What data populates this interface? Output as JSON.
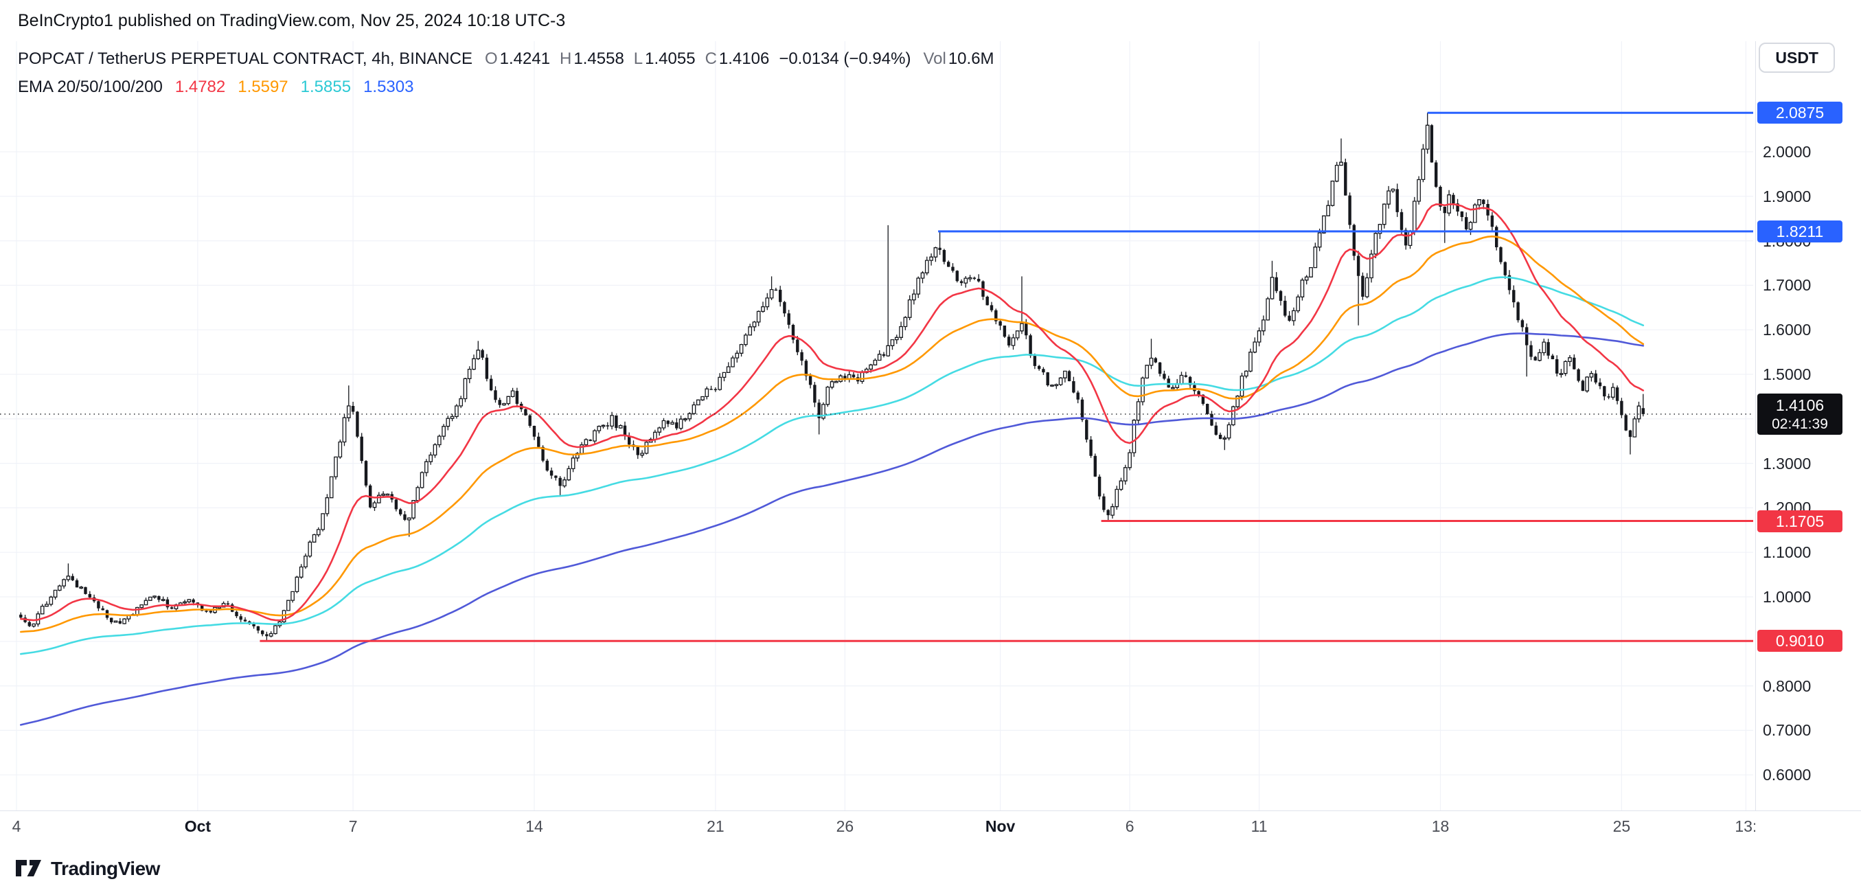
{
  "attribution": "BeInCrypto1 published on TradingView.com, Nov 25, 2024 10:18 UTC-3",
  "header": {
    "symbol_title": "POPCAT / TetherUS PERPETUAL CONTRACT, 4h, BINANCE",
    "ohlc": {
      "o_label": "O",
      "o": "1.4241",
      "h_label": "H",
      "h": "1.4558",
      "l_label": "L",
      "l": "1.4055",
      "c_label": "C",
      "c": "1.4106",
      "change": "−0.0134 (−0.94%)",
      "vol_label": "Vol",
      "vol": "10.6M"
    },
    "ema": {
      "label": "EMA 20/50/100/200",
      "values": [
        {
          "text": "1.4782",
          "color": "#f23645"
        },
        {
          "text": "1.5597",
          "color": "#ff9800"
        },
        {
          "text": "1.5855",
          "color": "#2bc9d4"
        },
        {
          "text": "1.5303",
          "color": "#2962ff"
        }
      ]
    }
  },
  "axis_button": "USDT",
  "footer_brand": "TradingView",
  "chart_data": {
    "type": "candlestick",
    "symbol": "POPCAT / TetherUS PERPETUAL CONTRACT",
    "interval": "4h",
    "exchange": "BINANCE",
    "x_unit": "days, d=0 at first visible candle (late Sep); Oct 1 = d7, Nov 25 = d62",
    "candles_per_day": 6,
    "ylim": [
      0.52,
      2.19
    ],
    "grid": true,
    "price_path": [
      [
        0,
        0.96
      ],
      [
        0.5,
        0.93
      ],
      [
        1.2,
        0.99
      ],
      [
        2,
        1.045
      ],
      [
        2.6,
        1.01
      ],
      [
        3.4,
        0.96
      ],
      [
        4,
        0.935
      ],
      [
        4.7,
        0.975
      ],
      [
        5.4,
        1.005
      ],
      [
        6,
        0.97
      ],
      [
        6.7,
        0.995
      ],
      [
        7.4,
        0.965
      ],
      [
        8,
        0.985
      ],
      [
        8.7,
        0.95
      ],
      [
        9.3,
        0.925
      ],
      [
        9.7,
        0.907
      ],
      [
        10.2,
        0.945
      ],
      [
        10.7,
        1.02
      ],
      [
        11.2,
        1.1
      ],
      [
        11.7,
        1.16
      ],
      [
        12.2,
        1.27
      ],
      [
        12.6,
        1.38
      ],
      [
        12.9,
        1.45
      ],
      [
        13.3,
        1.32
      ],
      [
        13.7,
        1.19
      ],
      [
        14.1,
        1.24
      ],
      [
        14.6,
        1.21
      ],
      [
        15.1,
        1.16
      ],
      [
        15.6,
        1.27
      ],
      [
        16.1,
        1.34
      ],
      [
        16.6,
        1.385
      ],
      [
        17.1,
        1.44
      ],
      [
        17.5,
        1.51
      ],
      [
        17.9,
        1.555
      ],
      [
        18.3,
        1.47
      ],
      [
        18.7,
        1.43
      ],
      [
        19.1,
        1.465
      ],
      [
        19.5,
        1.42
      ],
      [
        20,
        1.36
      ],
      [
        20.5,
        1.29
      ],
      [
        21,
        1.245
      ],
      [
        21.5,
        1.31
      ],
      [
        22,
        1.345
      ],
      [
        22.5,
        1.375
      ],
      [
        23,
        1.4
      ],
      [
        23.5,
        1.365
      ],
      [
        24,
        1.315
      ],
      [
        24.5,
        1.36
      ],
      [
        25,
        1.4
      ],
      [
        25.5,
        1.385
      ],
      [
        26,
        1.42
      ],
      [
        26.5,
        1.45
      ],
      [
        27,
        1.475
      ],
      [
        27.6,
        1.52
      ],
      [
        28.2,
        1.585
      ],
      [
        28.7,
        1.64
      ],
      [
        29.2,
        1.7
      ],
      [
        29.7,
        1.63
      ],
      [
        30.1,
        1.56
      ],
      [
        30.6,
        1.49
      ],
      [
        31,
        1.41
      ],
      [
        31.4,
        1.475
      ],
      [
        31.9,
        1.5
      ],
      [
        32.4,
        1.485
      ],
      [
        32.9,
        1.525
      ],
      [
        33.4,
        1.545
      ],
      [
        33.7,
        1.56
      ],
      [
        34.1,
        1.6
      ],
      [
        34.5,
        1.66
      ],
      [
        34.9,
        1.72
      ],
      [
        35.3,
        1.76
      ],
      [
        35.6,
        1.78
      ],
      [
        36,
        1.74
      ],
      [
        36.5,
        1.7
      ],
      [
        37,
        1.72
      ],
      [
        37.5,
        1.66
      ],
      [
        38,
        1.6
      ],
      [
        38.4,
        1.565
      ],
      [
        38.8,
        1.625
      ],
      [
        39.2,
        1.54
      ],
      [
        39.6,
        1.5
      ],
      [
        40,
        1.47
      ],
      [
        40.5,
        1.5
      ],
      [
        41,
        1.45
      ],
      [
        41.3,
        1.37
      ],
      [
        41.6,
        1.28
      ],
      [
        41.9,
        1.21
      ],
      [
        42.2,
        1.185
      ],
      [
        42.6,
        1.25
      ],
      [
        43,
        1.33
      ],
      [
        43.4,
        1.47
      ],
      [
        43.8,
        1.545
      ],
      [
        44.2,
        1.5
      ],
      [
        44.6,
        1.455
      ],
      [
        45,
        1.5
      ],
      [
        45.4,
        1.475
      ],
      [
        45.8,
        1.43
      ],
      [
        46.2,
        1.38
      ],
      [
        46.6,
        1.35
      ],
      [
        47,
        1.42
      ],
      [
        47.4,
        1.5
      ],
      [
        47.8,
        1.56
      ],
      [
        48.2,
        1.63
      ],
      [
        48.5,
        1.71
      ],
      [
        48.8,
        1.67
      ],
      [
        49.1,
        1.62
      ],
      [
        49.4,
        1.66
      ],
      [
        49.7,
        1.71
      ],
      [
        50,
        1.75
      ],
      [
        50.3,
        1.8
      ],
      [
        50.6,
        1.87
      ],
      [
        50.9,
        1.95
      ],
      [
        51.1,
        2.0
      ],
      [
        51.4,
        1.87
      ],
      [
        51.7,
        1.75
      ],
      [
        52,
        1.68
      ],
      [
        52.4,
        1.78
      ],
      [
        52.8,
        1.88
      ],
      [
        53.1,
        1.93
      ],
      [
        53.4,
        1.85
      ],
      [
        53.7,
        1.79
      ],
      [
        54,
        1.88
      ],
      [
        54.3,
        1.99
      ],
      [
        54.5,
        2.05
      ],
      [
        54.8,
        1.93
      ],
      [
        55.1,
        1.86
      ],
      [
        55.4,
        1.9
      ],
      [
        55.7,
        1.87
      ],
      [
        56,
        1.83
      ],
      [
        56.3,
        1.87
      ],
      [
        56.6,
        1.89
      ],
      [
        56.9,
        1.84
      ],
      [
        57.2,
        1.78
      ],
      [
        57.5,
        1.72
      ],
      [
        57.8,
        1.67
      ],
      [
        58.1,
        1.61
      ],
      [
        58.4,
        1.55
      ],
      [
        58.7,
        1.52
      ],
      [
        59,
        1.575
      ],
      [
        59.3,
        1.53
      ],
      [
        59.6,
        1.49
      ],
      [
        59.9,
        1.545
      ],
      [
        60.2,
        1.5
      ],
      [
        60.5,
        1.46
      ],
      [
        60.8,
        1.51
      ],
      [
        61.1,
        1.475
      ],
      [
        61.4,
        1.435
      ],
      [
        61.7,
        1.465
      ],
      [
        62,
        1.4
      ],
      [
        62.3,
        1.355
      ],
      [
        62.6,
        1.43
      ],
      [
        62.9,
        1.41
      ]
    ],
    "wick_events": [
      {
        "d": 2,
        "high": 1.075
      },
      {
        "d": 9.7,
        "low": 0.901
      },
      {
        "d": 12.9,
        "high": 1.475
      },
      {
        "d": 15.1,
        "low": 1.135
      },
      {
        "d": 17.9,
        "high": 1.575
      },
      {
        "d": 21,
        "low": 1.225
      },
      {
        "d": 29.2,
        "high": 1.72
      },
      {
        "d": 31,
        "low": 1.365
      },
      {
        "d": 33.7,
        "high": 1.835
      },
      {
        "d": 35.6,
        "high": 1.8211
      },
      {
        "d": 38.8,
        "high": 1.72
      },
      {
        "d": 42.2,
        "low": 1.1705
      },
      {
        "d": 43.8,
        "high": 1.58
      },
      {
        "d": 46.6,
        "low": 1.33
      },
      {
        "d": 48.5,
        "high": 1.755
      },
      {
        "d": 51.1,
        "high": 2.03
      },
      {
        "d": 51.9,
        "low": 1.61
      },
      {
        "d": 54.5,
        "high": 2.0875
      },
      {
        "d": 55.1,
        "low": 1.795
      },
      {
        "d": 58.4,
        "low": 1.495
      },
      {
        "d": 62.3,
        "low": 1.32
      }
    ],
    "last_candle": {
      "o": 1.4241,
      "h": 1.4558,
      "l": 1.4055,
      "c": 1.4106
    },
    "emas": [
      {
        "period": 20,
        "color": "#f23645",
        "seed": 0.95,
        "value": 1.4782
      },
      {
        "period": 50,
        "color": "#ff9800",
        "seed": 0.92,
        "value": 1.5597
      },
      {
        "period": 100,
        "color": "#45dbe3",
        "seed": 0.87,
        "value": 1.5855
      },
      {
        "period": 200,
        "color": "#5059d8",
        "seed": 0.71,
        "value": 1.5303
      }
    ],
    "levels": [
      {
        "price": 2.0875,
        "label": "2.0875",
        "color": "#2962ff",
        "start_d": 54.5
      },
      {
        "price": 1.8211,
        "label": "1.8211",
        "color": "#2962ff",
        "start_d": 35.6
      },
      {
        "price": 1.1705,
        "label": "1.1705",
        "color": "#f23645",
        "start_d": 41.9
      },
      {
        "price": 0.901,
        "label": "0.9010",
        "color": "#f23645",
        "start_d": 9.4
      }
    ],
    "current_price": {
      "value": 1.4106,
      "label": "1.4106",
      "countdown": "02:41:39"
    },
    "y_ticks": [
      {
        "v": 2.0,
        "label": "2.0000"
      },
      {
        "v": 1.9,
        "label": "1.9000"
      },
      {
        "v": 1.8,
        "label": "1.8000"
      },
      {
        "v": 1.7,
        "label": "1.7000"
      },
      {
        "v": 1.6,
        "label": "1.6000"
      },
      {
        "v": 1.5,
        "label": "1.5000"
      },
      {
        "v": 1.3,
        "label": "1.3000"
      },
      {
        "v": 1.2,
        "label": "1.2000"
      },
      {
        "v": 1.1,
        "label": "1.1000"
      },
      {
        "v": 1.0,
        "label": "1.0000"
      },
      {
        "v": 0.8,
        "label": "0.8000"
      },
      {
        "v": 0.7,
        "label": "0.7000"
      },
      {
        "v": 0.6,
        "label": "0.6000"
      }
    ],
    "x_ticks": [
      {
        "d": 0,
        "label": "4",
        "bold": false
      },
      {
        "d": 7,
        "label": "Oct",
        "bold": true
      },
      {
        "d": 13,
        "label": "7",
        "bold": false
      },
      {
        "d": 20,
        "label": "14",
        "bold": false
      },
      {
        "d": 27,
        "label": "21",
        "bold": false
      },
      {
        "d": 32,
        "label": "26",
        "bold": false
      },
      {
        "d": 38,
        "label": "Nov",
        "bold": true
      },
      {
        "d": 43,
        "label": "6",
        "bold": false
      },
      {
        "d": 48,
        "label": "11",
        "bold": false
      },
      {
        "d": 55,
        "label": "18",
        "bold": false
      },
      {
        "d": 62,
        "label": "25",
        "bold": false
      },
      {
        "d": 66.8,
        "label": "13:",
        "bold": false
      }
    ]
  }
}
